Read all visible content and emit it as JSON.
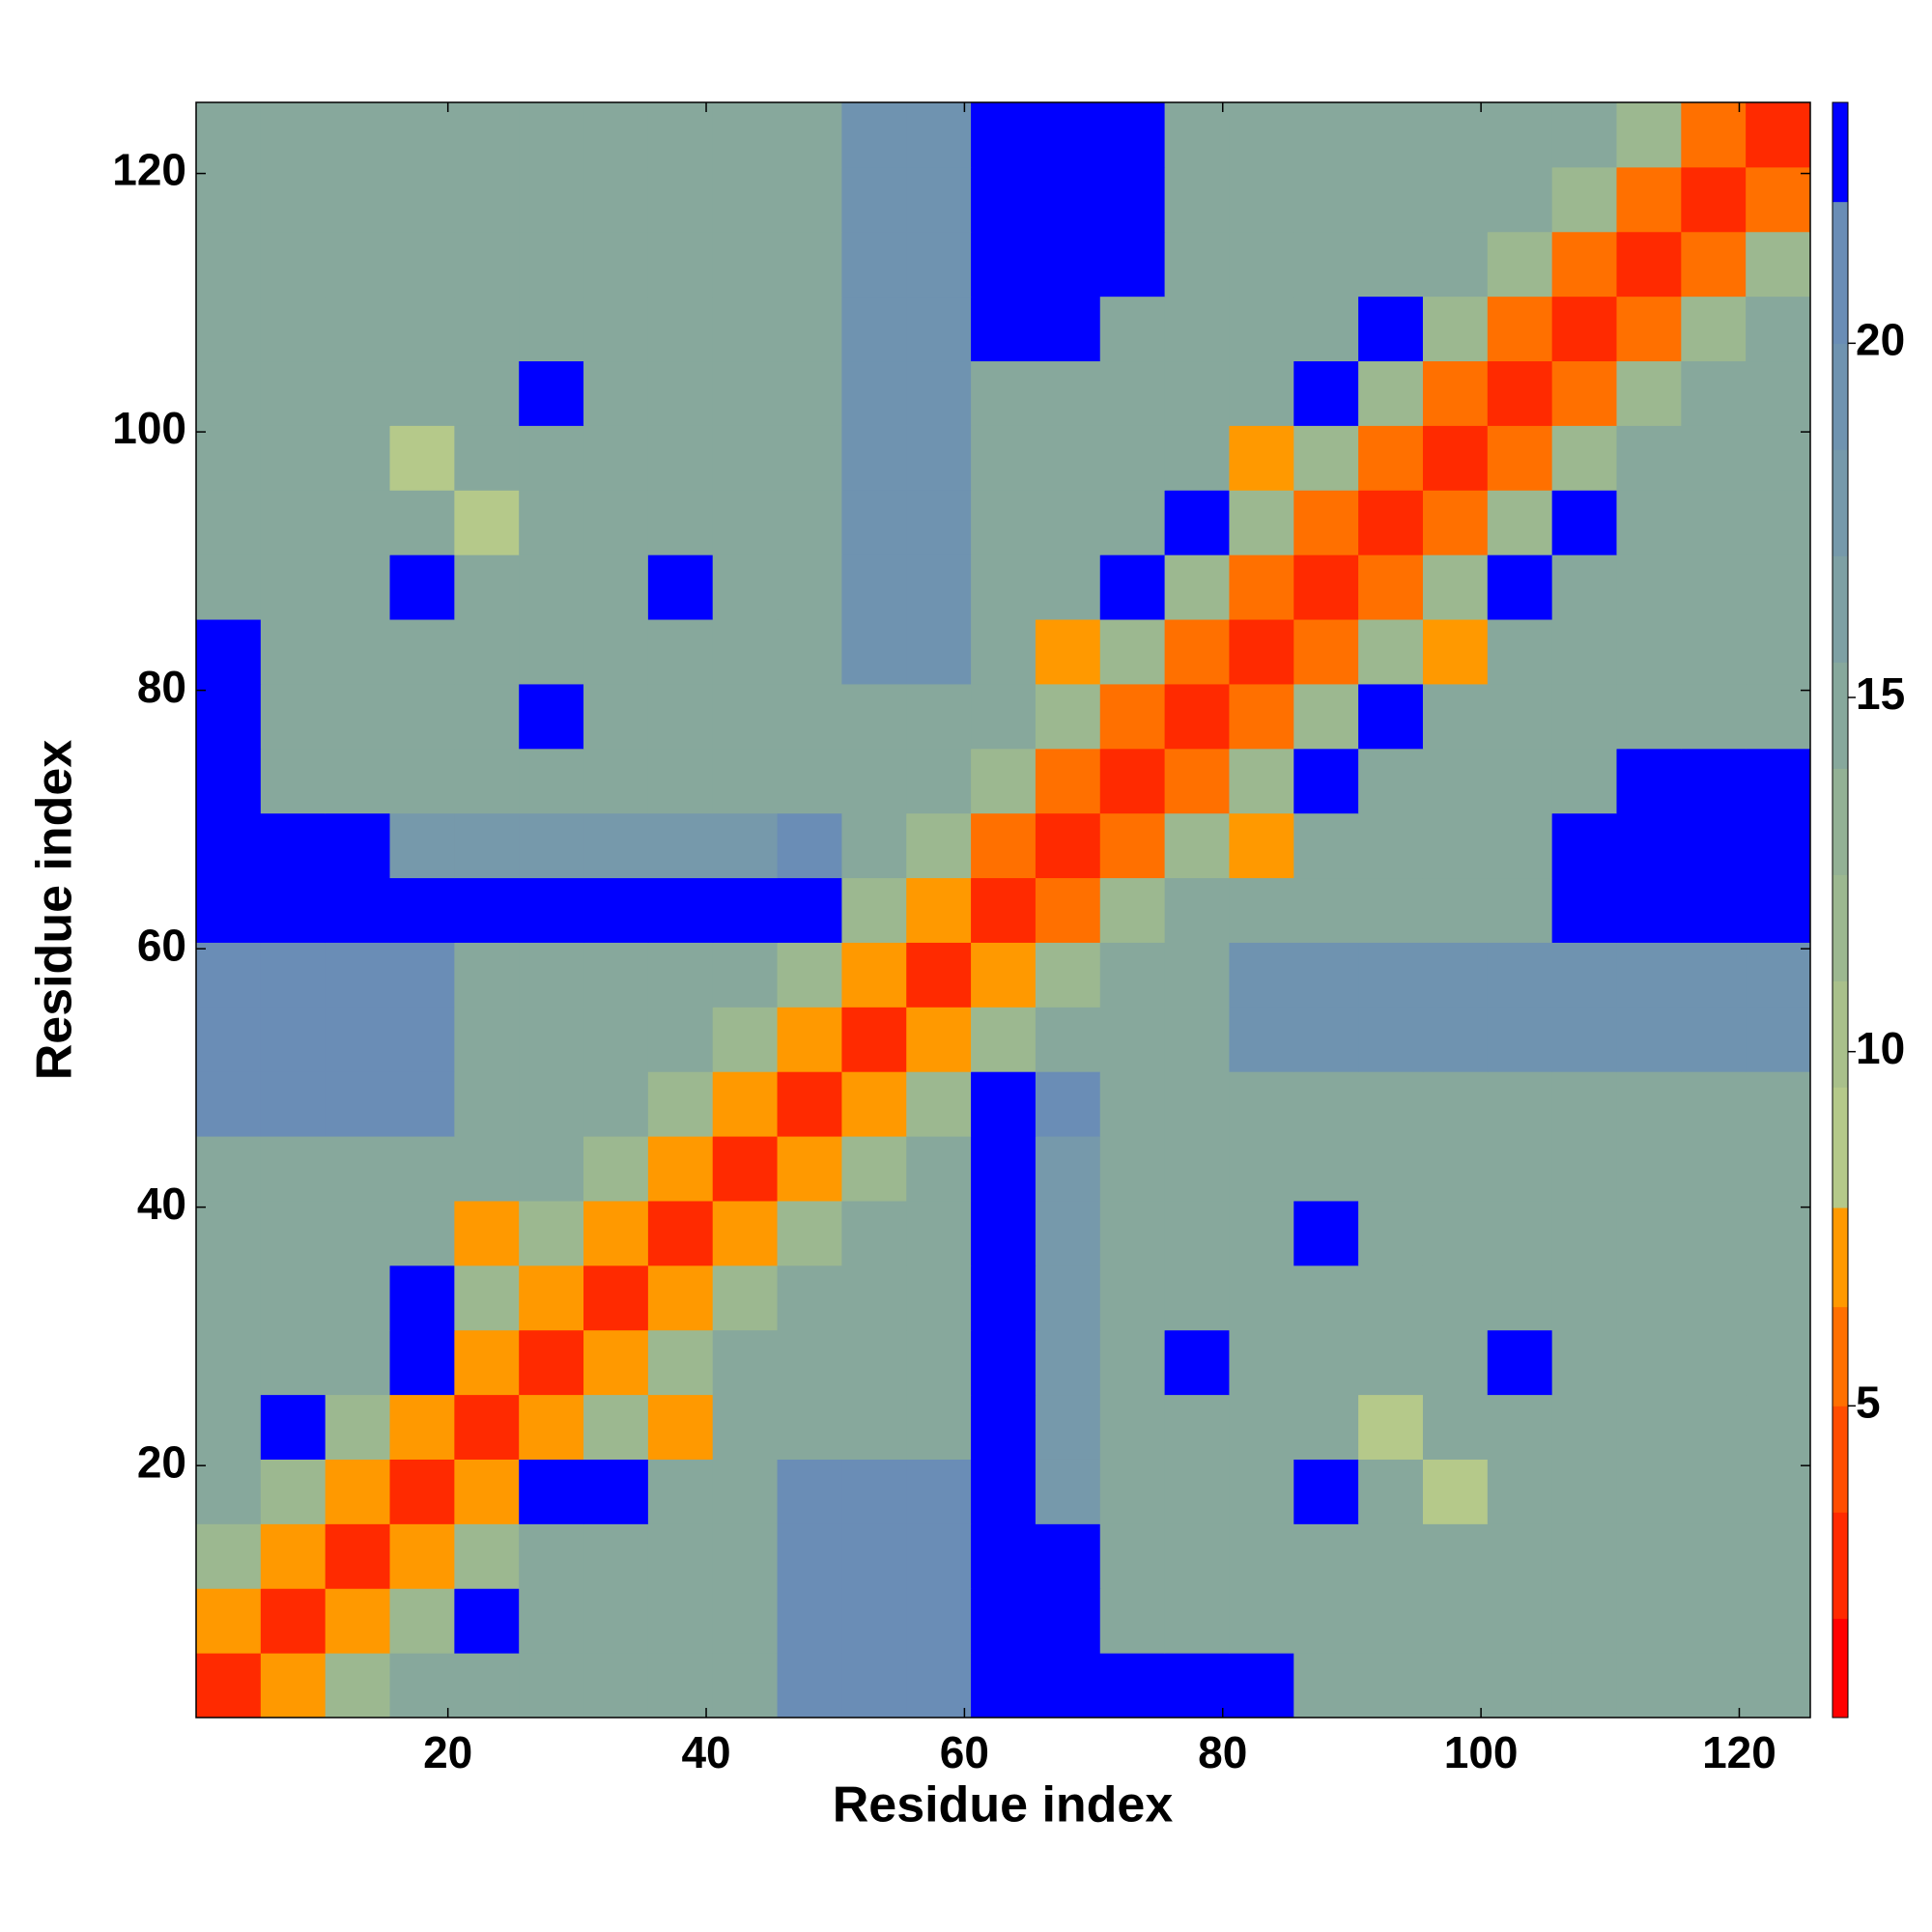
{
  "chart_data": {
    "type": "heatmap",
    "xlabel": "Residue index",
    "ylabel": "Residue index",
    "xbins": [
      0.5,
      5.5,
      10.5,
      15.5,
      20.5,
      25.5,
      30.5,
      35.5,
      40.5,
      45.5,
      50.5,
      55.5,
      60.5,
      65.5,
      70.5,
      75.5,
      80.5,
      85.5,
      90.5,
      95.5,
      100.5,
      105.5,
      110.5,
      115.5,
      120.5,
      125.5
    ],
    "ybins": [
      0.5,
      5.5,
      10.5,
      15.5,
      20.5,
      25.5,
      30.5,
      35.5,
      40.5,
      45.5,
      50.5,
      55.5,
      60.5,
      65.5,
      70.5,
      75.5,
      80.5,
      85.5,
      90.5,
      95.5,
      100.5,
      105.5,
      110.5,
      115.5,
      120.5,
      125.5
    ],
    "xlim": [
      0.5,
      125.5
    ],
    "ylim": [
      0.5,
      125.5
    ],
    "xticks": [
      20,
      40,
      60,
      80,
      100,
      120
    ],
    "yticks": [
      20,
      40,
      60,
      80,
      100,
      120
    ],
    "z": [
      [
        2.5,
        7,
        12,
        15,
        15,
        15,
        15,
        15,
        15,
        20,
        20,
        20,
        23,
        23,
        23,
        23,
        23,
        15,
        15,
        15,
        15,
        15,
        15,
        15,
        15
      ],
      [
        7,
        2.5,
        7,
        12,
        23,
        15,
        15,
        15,
        15,
        20,
        20,
        20,
        23,
        23,
        15,
        15,
        15,
        15,
        15,
        15,
        15,
        15,
        15,
        15,
        15
      ],
      [
        12,
        7,
        2.5,
        7,
        12,
        15,
        15,
        15,
        15,
        20,
        20,
        20,
        23,
        23,
        15,
        15,
        15,
        15,
        15,
        15,
        15,
        15,
        15,
        15,
        15
      ],
      [
        15,
        12,
        7,
        2.5,
        7,
        23,
        23,
        15,
        15,
        20,
        20,
        20,
        23,
        18,
        15,
        15,
        15,
        23,
        15,
        8,
        15,
        15,
        15,
        15,
        15
      ],
      [
        15,
        23,
        12,
        7,
        2.5,
        7,
        12,
        7,
        15,
        15,
        15,
        15,
        23,
        18,
        15,
        15,
        15,
        15,
        8,
        15,
        15,
        15,
        15,
        15,
        15
      ],
      [
        15,
        15,
        15,
        23,
        7,
        2.5,
        7,
        12,
        15,
        15,
        15,
        15,
        23,
        18,
        15,
        23,
        15,
        15,
        15,
        15,
        23,
        15,
        15,
        15,
        15
      ],
      [
        15,
        15,
        15,
        23,
        12,
        7,
        2.5,
        7,
        12,
        15,
        15,
        15,
        23,
        18,
        15,
        15,
        15,
        15,
        15,
        15,
        15,
        15,
        15,
        15,
        15
      ],
      [
        15,
        15,
        15,
        15,
        7,
        12,
        7,
        2.5,
        7,
        12,
        15,
        15,
        23,
        18,
        15,
        15,
        15,
        23,
        15,
        15,
        15,
        15,
        15,
        15,
        15
      ],
      [
        15,
        15,
        15,
        15,
        15,
        15,
        12,
        7,
        2.5,
        7,
        12,
        15,
        23,
        18,
        15,
        15,
        15,
        15,
        15,
        15,
        15,
        15,
        15,
        15,
        15
      ],
      [
        20,
        20,
        20,
        20,
        15,
        15,
        15,
        12,
        7,
        2.5,
        7,
        12,
        23,
        20,
        15,
        15,
        15,
        15,
        15,
        15,
        15,
        15,
        15,
        15,
        15
      ],
      [
        20,
        20,
        20,
        20,
        15,
        15,
        15,
        15,
        12,
        7,
        2.5,
        7,
        12,
        15,
        14,
        14,
        19,
        19,
        19,
        19,
        19,
        19,
        19,
        19,
        19
      ],
      [
        20,
        20,
        20,
        20,
        15,
        15,
        15,
        15,
        15,
        12,
        7,
        2.5,
        7,
        12,
        14,
        14,
        19,
        19,
        19,
        19,
        19,
        19,
        19,
        19,
        19
      ],
      [
        23,
        23,
        23,
        23,
        23,
        23,
        23,
        23,
        23,
        23,
        12,
        7,
        2.5,
        6,
        11,
        14,
        14,
        14,
        14,
        14,
        14,
        23,
        23,
        23,
        23
      ],
      [
        23,
        23,
        23,
        18,
        18,
        18,
        18,
        18,
        18,
        20,
        15,
        12,
        6,
        2.5,
        6,
        11,
        7,
        14,
        14,
        14,
        14,
        23,
        23,
        23,
        23
      ],
      [
        23,
        15,
        15,
        15,
        15,
        15,
        15,
        15,
        15,
        15,
        14,
        14,
        11,
        6,
        2.5,
        6,
        11,
        23,
        14,
        14,
        14,
        14,
        23,
        23,
        23
      ],
      [
        23,
        15,
        15,
        15,
        15,
        23,
        15,
        15,
        15,
        15,
        14,
        14,
        14,
        11,
        6,
        2.5,
        6,
        11,
        23,
        14,
        14,
        14,
        14,
        14,
        14
      ],
      [
        23,
        15,
        15,
        15,
        15,
        15,
        15,
        15,
        15,
        15,
        19,
        19,
        14,
        7,
        11,
        6,
        2.5,
        6,
        11,
        7,
        14,
        14,
        14,
        14,
        14
      ],
      [
        15,
        15,
        15,
        23,
        15,
        15,
        15,
        23,
        15,
        15,
        19,
        19,
        14,
        14,
        23,
        11,
        6,
        2.5,
        6,
        11,
        23,
        14,
        14,
        14,
        14
      ],
      [
        15,
        15,
        15,
        15,
        8,
        15,
        15,
        15,
        15,
        15,
        19,
        19,
        14,
        14,
        14,
        23,
        11,
        6,
        2.5,
        6,
        11,
        23,
        14,
        14,
        14
      ],
      [
        15,
        15,
        15,
        8,
        15,
        15,
        15,
        15,
        15,
        15,
        19,
        19,
        14,
        14,
        14,
        14,
        7,
        11,
        6,
        2.5,
        6,
        11,
        14,
        14,
        14
      ],
      [
        15,
        15,
        15,
        15,
        15,
        23,
        15,
        15,
        15,
        15,
        19,
        19,
        14,
        14,
        14,
        14,
        14,
        23,
        11,
        6,
        2.5,
        6,
        11,
        14,
        14
      ],
      [
        15,
        15,
        15,
        15,
        15,
        15,
        15,
        15,
        15,
        15,
        19,
        19,
        23,
        23,
        14,
        14,
        14,
        14,
        23,
        11,
        6,
        2.5,
        6,
        11,
        14
      ],
      [
        15,
        15,
        15,
        15,
        15,
        15,
        15,
        15,
        15,
        15,
        19,
        19,
        23,
        23,
        23,
        14,
        14,
        14,
        14,
        14,
        11,
        6,
        2.5,
        6,
        11
      ],
      [
        15,
        15,
        15,
        15,
        15,
        15,
        15,
        15,
        15,
        15,
        19,
        19,
        23,
        23,
        23,
        14,
        14,
        14,
        14,
        14,
        14,
        11,
        6,
        2.5,
        6
      ],
      [
        15,
        15,
        15,
        15,
        15,
        15,
        15,
        15,
        15,
        15,
        19,
        19,
        23,
        23,
        23,
        14,
        14,
        14,
        14,
        14,
        14,
        14,
        11,
        6,
        2.5
      ]
    ],
    "colorbar": {
      "lim": [
        0.6,
        23.4
      ],
      "ticks": [
        5,
        10,
        15,
        20
      ],
      "levels": [
        0.6,
        2,
        3.5,
        5,
        6.4,
        7.8,
        9.5,
        11,
        12.5,
        14,
        15.5,
        17,
        18.5,
        20,
        22,
        23.4
      ],
      "colors": [
        "#ff0000",
        "#ff2a00",
        "#ff4d00",
        "#ff7000",
        "#ff9900",
        "#b5c98a",
        "#a9c08b",
        "#9cb890",
        "#93b195",
        "#87a89c",
        "#7ea0a4",
        "#7699ab",
        "#6f93b0",
        "#6a8db6",
        "#0000ff"
      ]
    }
  }
}
